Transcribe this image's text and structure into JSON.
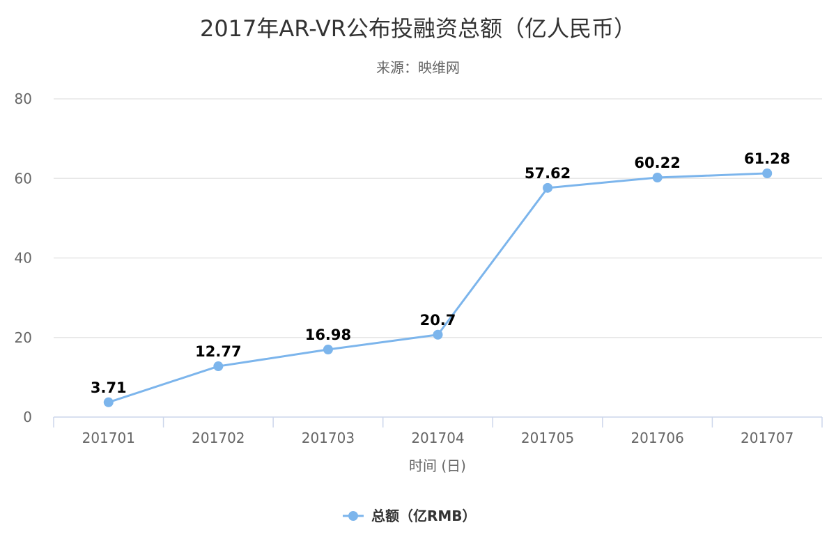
{
  "chart_data": {
    "type": "line",
    "title": "2017年AR-VR公布投融资总额（亿人民币）",
    "subtitle": "来源：映维网",
    "xlabel": "时间 (日)",
    "ylabel": "",
    "categories": [
      "201701",
      "201702",
      "201703",
      "201704",
      "201705",
      "201706",
      "201707"
    ],
    "series": [
      {
        "name": "总额（亿RMB）",
        "values": [
          3.71,
          12.77,
          16.98,
          20.7,
          57.62,
          60.22,
          61.28
        ],
        "labels": [
          "3.71",
          "12.77",
          "16.98",
          "20.7",
          "57.62",
          "60.22",
          "61.28"
        ],
        "color": "#7cb5ec"
      }
    ],
    "ylim": [
      0,
      80
    ],
    "yticks": [
      "0",
      "20",
      "40",
      "60",
      "80"
    ],
    "grid": true,
    "legend_position": "bottom-center"
  }
}
